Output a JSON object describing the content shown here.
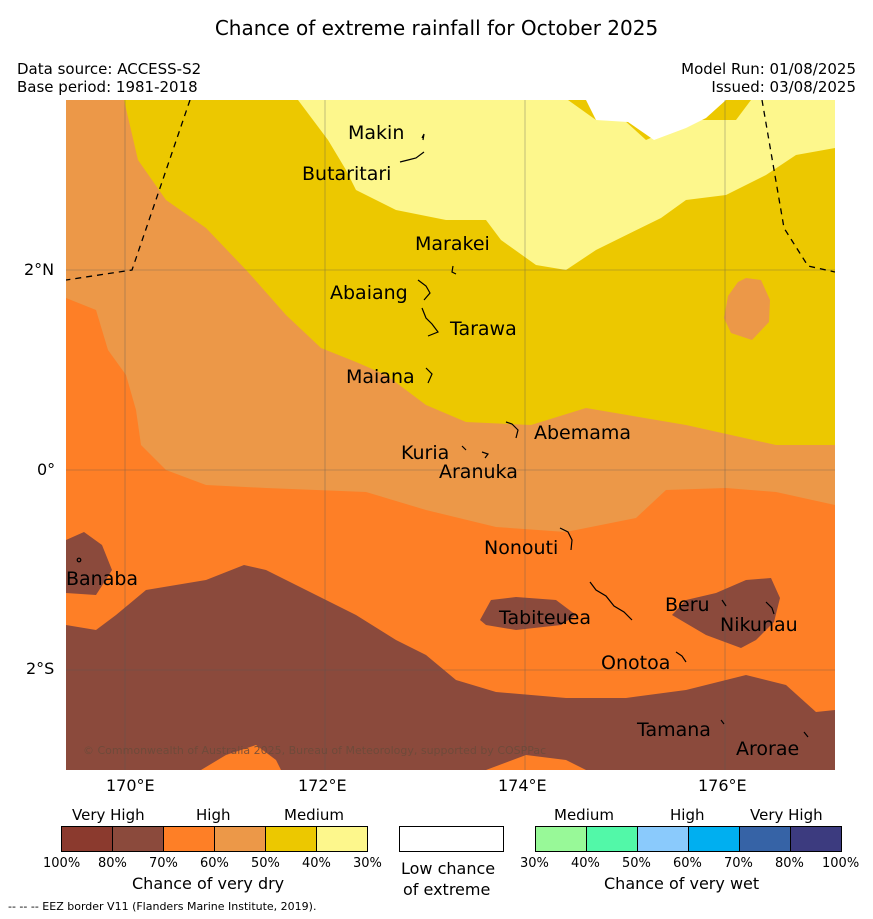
{
  "title": "Chance of extreme rainfall for October 2025",
  "meta": {
    "data_source": "Data source: ACCESS-S2",
    "base_period": "Base period: 1981-2018",
    "model_run": "Model Run: 01/08/2025",
    "issued": "Issued: 03/08/2025"
  },
  "map": {
    "x_ticks": [
      "170°E",
      "172°E",
      "174°E",
      "176°E"
    ],
    "y_ticks": [
      "2°N",
      "0°",
      "2°S"
    ],
    "copyright": "© Commonwealth of Australia 2025, Bureau of Meteorology, supported by COSPPac",
    "islands": {
      "makin": "Makin",
      "butaritari": "Butaritari",
      "marakei": "Marakei",
      "abaiang": "Abaiang",
      "tarawa": "Tarawa",
      "maiana": "Maiana",
      "abemama": "Abemama",
      "kuria": "Kuria",
      "aranuka": "Aranuka",
      "nonouti": "Nonouti",
      "banaba": "Banaba",
      "tabiteuea": "Tabiteuea",
      "beru": "Beru",
      "nikunau": "Nikunau",
      "onotoa": "Onotoa",
      "tamana": "Tamana",
      "arorae": "Arorae"
    },
    "colors": {
      "dry_very_high_100_80": "#8b3a2e",
      "dry_very_high_80_70": "#8b4a3c",
      "dry_high_70_60": "#fe7f26",
      "dry_high_60_50": "#ec9848",
      "dry_medium_50_40": "#ecc800",
      "dry_medium_40_30": "#fdf78c",
      "low_chance": "#ffffff"
    }
  },
  "legend": {
    "dry": {
      "categories": [
        "Very High",
        "High",
        "Medium"
      ],
      "ticks": [
        "100%",
        "80%",
        "70%",
        "60%",
        "50%",
        "40%",
        "30%"
      ],
      "colors": [
        "#8b3a2e",
        "#8b4a3c",
        "#fe7f26",
        "#ec9848",
        "#ecc800",
        "#fdf78c"
      ],
      "title": "Chance of very dry"
    },
    "low": {
      "line1": "Low chance",
      "line2": "of extreme"
    },
    "wet": {
      "categories": [
        "Medium",
        "High",
        "Very High"
      ],
      "ticks": [
        "30%",
        "40%",
        "50%",
        "60%",
        "70%",
        "80%",
        "100%"
      ],
      "colors": [
        "#98f998",
        "#52f8a8",
        "#8acafc",
        "#00aff0",
        "#3663a6",
        "#3c3b7f"
      ],
      "title": "Chance of very wet"
    }
  },
  "footnote": "--  --  -- EEZ border V11 (Flanders Marine Institute, 2019)."
}
